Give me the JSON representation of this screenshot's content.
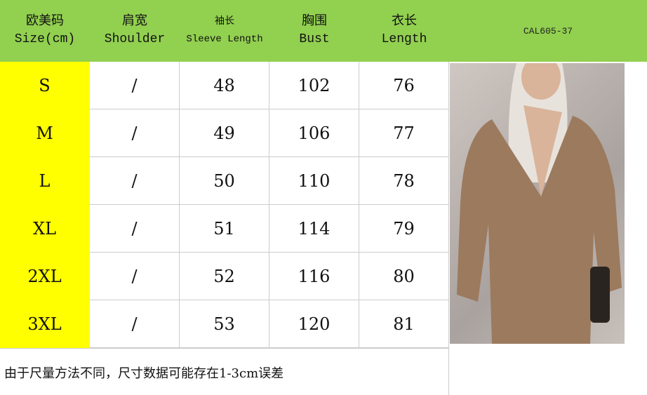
{
  "header": {
    "columns": [
      {
        "cn": "欧美码",
        "en": "Size(cm)"
      },
      {
        "cn": "肩宽",
        "en": "Shoulder"
      },
      {
        "cn": "袖长",
        "en": "Sleeve Length"
      },
      {
        "cn": "胸围",
        "en": "Bust"
      },
      {
        "cn": "衣长",
        "en": "Length"
      }
    ],
    "product_code": "CAL605-37"
  },
  "rows": [
    [
      "S",
      "/",
      "48",
      "102",
      "76"
    ],
    [
      "M",
      "/",
      "49",
      "106",
      "77"
    ],
    [
      "L",
      "/",
      "50",
      "110",
      "78"
    ],
    [
      "XL",
      "/",
      "51",
      "114",
      "79"
    ],
    [
      "2XL",
      "/",
      "52",
      "116",
      "80"
    ],
    [
      "3XL",
      "/",
      "53",
      "120",
      "81"
    ]
  ],
  "note": "由于尺量方法不同，尺寸数据可能存在1-3cm误差",
  "colors": {
    "header": "#92d050",
    "size_column": "#ffff00"
  }
}
